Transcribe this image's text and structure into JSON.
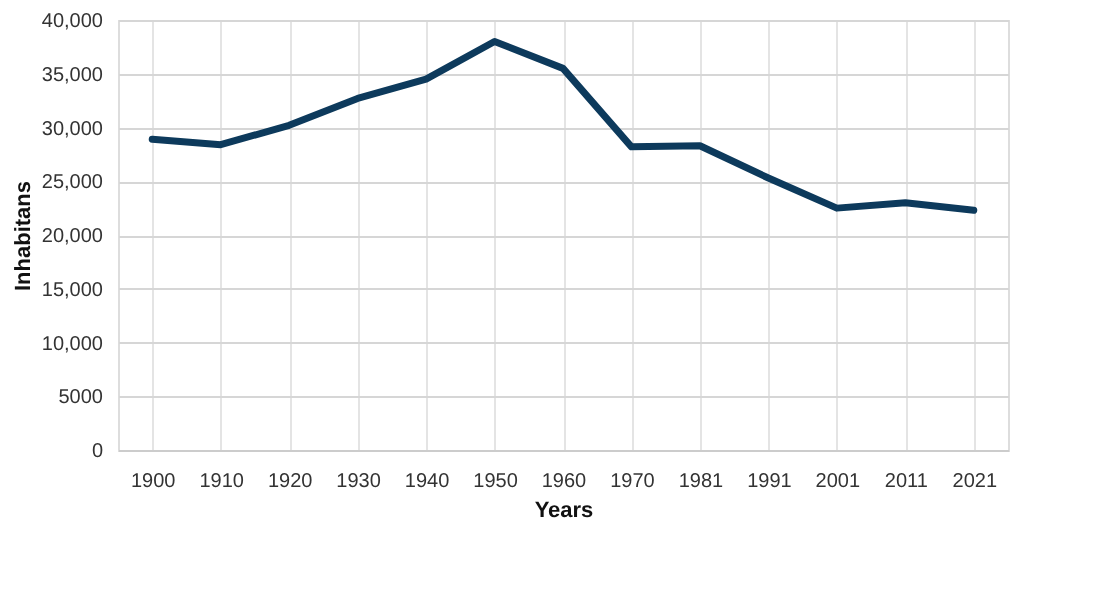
{
  "chart_data": {
    "type": "line",
    "xlabel": "Years",
    "ylabel": "Inhabitans",
    "categories": [
      "1900",
      "1910",
      "1920",
      "1930",
      "1940",
      "1950",
      "1960",
      "1970",
      "1981",
      "1991",
      "2001",
      "2011",
      "2021"
    ],
    "series": [
      {
        "color": "#0d3a5c",
        "values": [
          28900,
          28400,
          30200,
          32700,
          34500,
          38000,
          35500,
          28200,
          28300,
          25300,
          22500,
          23000,
          22300
        ]
      }
    ],
    "ylim": [
      0,
      40000
    ],
    "yticks": [
      0,
      {
        "value": 5000,
        "label": "5000"
      },
      {
        "value": 10000,
        "label": "10,000"
      },
      {
        "value": 15000,
        "label": "15,000"
      },
      {
        "value": 20000,
        "label": "20,000"
      },
      {
        "value": 25000,
        "label": "25,000"
      },
      {
        "value": 30000,
        "label": "30,000"
      },
      {
        "value": 35000,
        "label": "35,000"
      },
      {
        "value": 40000,
        "label": "40,000"
      }
    ],
    "grid": true,
    "marker": "none",
    "line_style": "solid"
  }
}
